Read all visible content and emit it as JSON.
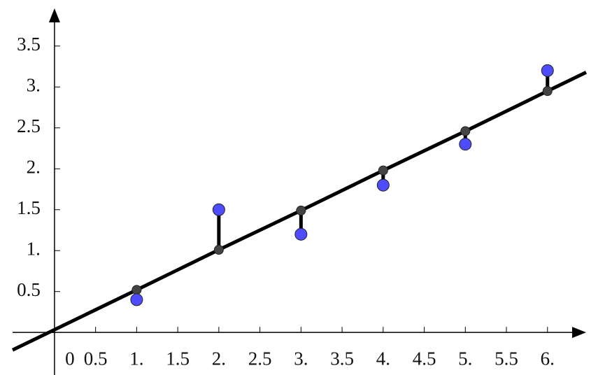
{
  "chart_data": {
    "type": "scatter",
    "x": [
      1,
      2,
      3,
      4,
      5,
      6
    ],
    "series": [
      {
        "color": "#4d4dff",
        "values": [
          0.4,
          1.5,
          1.2,
          1.8,
          2.3,
          3.2
        ]
      },
      {
        "color": "#444444",
        "values": [
          0.52,
          1.01,
          1.49,
          1.98,
          2.46,
          2.95
        ]
      }
    ],
    "line_color": "#000000",
    "xlim": [
      -0.51,
      6.47
    ],
    "ylim": [
      -0.52,
      3.96
    ],
    "xticks": [
      0,
      0.5,
      {
        "value": 1,
        "label": "1."
      },
      1.5,
      {
        "value": 2,
        "label": "2."
      },
      2.5,
      {
        "value": 3,
        "label": "3."
      },
      3.5,
      {
        "value": 4,
        "label": "4."
      },
      4.5,
      {
        "value": 5,
        "label": "5."
      },
      5.5,
      {
        "value": 6,
        "label": "6."
      }
    ],
    "yticks": [
      0.5,
      {
        "value": 1,
        "label": "1."
      },
      1.5,
      {
        "value": 2,
        "label": "2."
      },
      2.5,
      {
        "value": 3,
        "label": "3."
      },
      3.5
    ]
  }
}
